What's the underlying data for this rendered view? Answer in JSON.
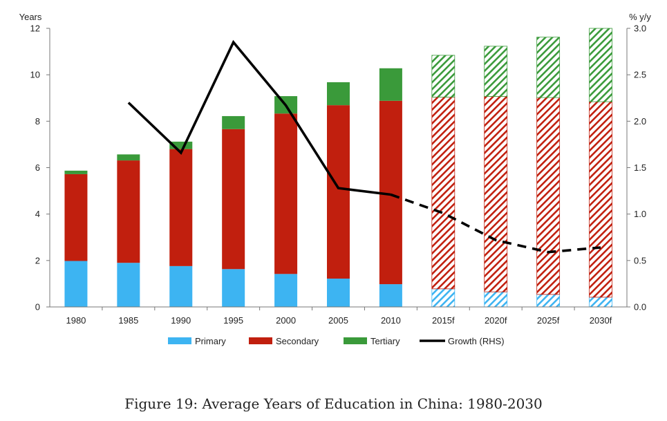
{
  "caption": "Figure 19: Average Years of Education in China: 1980-2030",
  "chart_data": {
    "type": "bar",
    "stacked": true,
    "categories": [
      "1980",
      "1985",
      "1990",
      "1995",
      "2000",
      "2005",
      "2010",
      "2015f",
      "2020f",
      "2025f",
      "2030f"
    ],
    "forecast_from_index": 7,
    "series": [
      {
        "name": "Primary",
        "color": "#3db4f2",
        "values": [
          1.98,
          1.9,
          1.76,
          1.63,
          1.42,
          1.22,
          0.98,
          0.78,
          0.65,
          0.54,
          0.42
        ]
      },
      {
        "name": "Secondary",
        "color": "#c11f0e",
        "values": [
          3.74,
          4.41,
          5.04,
          6.03,
          6.91,
          7.47,
          7.9,
          8.26,
          8.42,
          8.48,
          8.42
        ]
      },
      {
        "name": "Tertiary",
        "color": "#3a9a3a",
        "values": [
          0.15,
          0.26,
          0.32,
          0.56,
          0.75,
          0.99,
          1.4,
          1.8,
          2.16,
          2.6,
          3.16
        ]
      }
    ],
    "line": {
      "name": "Growth (RHS)",
      "color": "#000000",
      "axis": "right",
      "values": [
        null,
        2.2,
        1.66,
        2.85,
        2.17,
        1.28,
        1.21,
        1.01,
        0.72,
        0.59,
        0.64
      ],
      "dashed_from_index": 6
    },
    "y_left": {
      "label": "Years",
      "min": 0,
      "max": 12,
      "ticks": [
        "0",
        "2",
        "4",
        "6",
        "8",
        "10",
        "12"
      ]
    },
    "y_right": {
      "label": "% y/y",
      "min": 0,
      "max": 3,
      "ticks": [
        "0.0",
        "0.5",
        "1.0",
        "1.5",
        "2.0",
        "2.5",
        "3.0"
      ]
    },
    "legend_position": "bottom",
    "grid": false
  }
}
